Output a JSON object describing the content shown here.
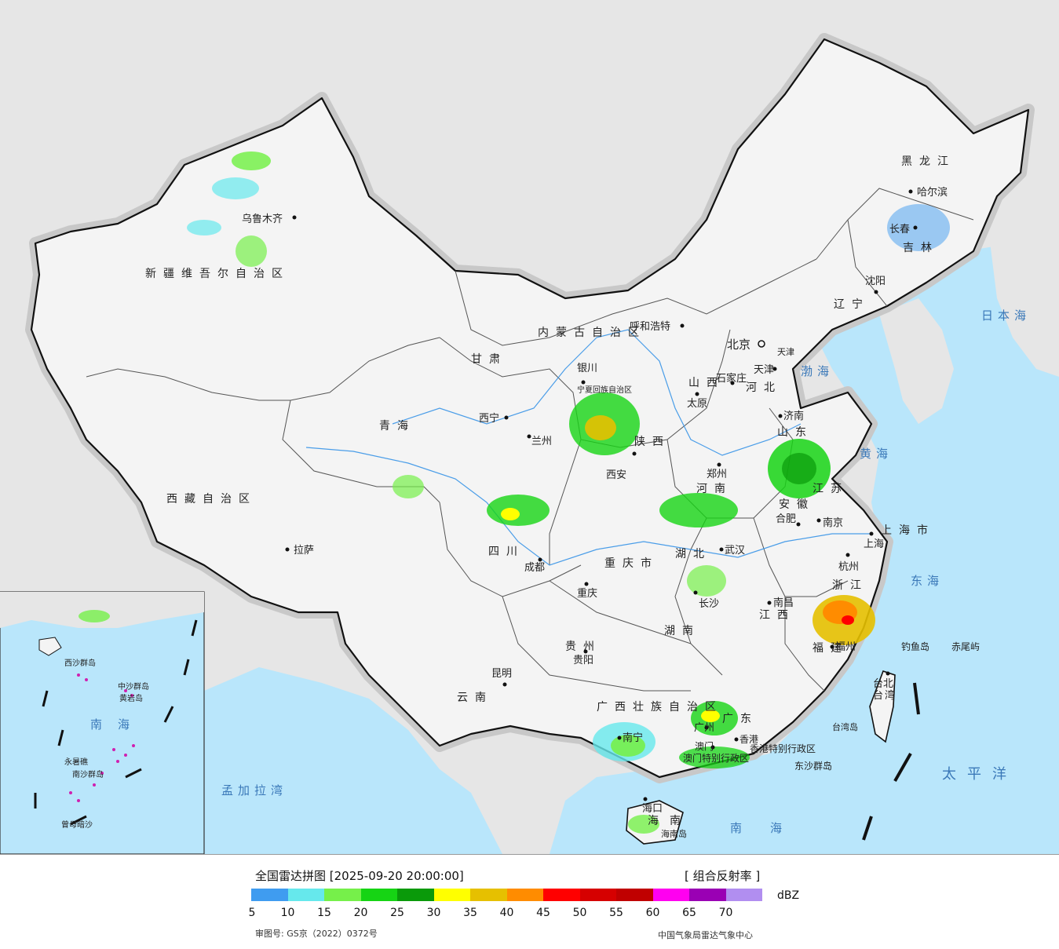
{
  "map": {
    "provinces": [
      {
        "id": "xinjiang",
        "label": "新疆维吾尔自治区"
      },
      {
        "id": "xizang",
        "label": "西藏自治区"
      },
      {
        "id": "qinghai",
        "label": "青海"
      },
      {
        "id": "gansu",
        "label": "甘肃"
      },
      {
        "id": "neimenggu",
        "label": "内蒙古自治区"
      },
      {
        "id": "heilongjiang",
        "label": "黑龙江"
      },
      {
        "id": "jilin",
        "label": "吉林"
      },
      {
        "id": "liaoning",
        "label": "辽宁"
      },
      {
        "id": "hebei",
        "label": "河北"
      },
      {
        "id": "shanxi",
        "label": "山西"
      },
      {
        "id": "shandong",
        "label": "山东"
      },
      {
        "id": "henan",
        "label": "河南"
      },
      {
        "id": "shaanxi",
        "label": "陕西"
      },
      {
        "id": "sichuan",
        "label": "四川"
      },
      {
        "id": "chongqing",
        "label": "重庆市"
      },
      {
        "id": "hubei",
        "label": "湖北"
      },
      {
        "id": "anhui",
        "label": "安徽"
      },
      {
        "id": "jiangsu",
        "label": "江苏"
      },
      {
        "id": "shanghai",
        "label": "上海市"
      },
      {
        "id": "zhejiang",
        "label": "浙江"
      },
      {
        "id": "jiangxi",
        "label": "江西"
      },
      {
        "id": "hunan",
        "label": "湖南"
      },
      {
        "id": "guizhou",
        "label": "贵州"
      },
      {
        "id": "yunnan",
        "label": "云南"
      },
      {
        "id": "guangxi",
        "label": "广西壮族自治区"
      },
      {
        "id": "guangdong",
        "label": "广东"
      },
      {
        "id": "fujian",
        "label": "福建"
      },
      {
        "id": "taiwan",
        "label": "台湾"
      },
      {
        "id": "hainan",
        "label": "海南"
      },
      {
        "id": "ningxia",
        "label": "宁夏回族自治区"
      },
      {
        "id": "xianggang",
        "label": "香港特别行政区"
      },
      {
        "id": "aomen",
        "label": "澳门特别行政区"
      },
      {
        "id": "tianjin",
        "label": "天津"
      }
    ],
    "cities": [
      {
        "id": "wulumuqi",
        "label": "乌鲁木齐"
      },
      {
        "id": "lasa",
        "label": "拉萨"
      },
      {
        "id": "xining",
        "label": "西宁"
      },
      {
        "id": "lanzhou",
        "label": "兰州"
      },
      {
        "id": "yinchuan",
        "label": "银川"
      },
      {
        "id": "huhehaote",
        "label": "呼和浩特"
      },
      {
        "id": "haerbin",
        "label": "哈尔滨"
      },
      {
        "id": "changchun",
        "label": "长春"
      },
      {
        "id": "shenyang",
        "label": "沈阳"
      },
      {
        "id": "beijing",
        "label": "北京"
      },
      {
        "id": "tianjin_city",
        "label": "天津"
      },
      {
        "id": "shijiazhuang",
        "label": "石家庄"
      },
      {
        "id": "taiyuan",
        "label": "太原"
      },
      {
        "id": "jinan",
        "label": "济南"
      },
      {
        "id": "zhengzhou",
        "label": "郑州"
      },
      {
        "id": "xian",
        "label": "西安"
      },
      {
        "id": "chengdu",
        "label": "成都"
      },
      {
        "id": "chongqing_city",
        "label": "重庆"
      },
      {
        "id": "wuhan",
        "label": "武汉"
      },
      {
        "id": "hefei",
        "label": "合肥"
      },
      {
        "id": "nanjing",
        "label": "南京"
      },
      {
        "id": "shanghai_city",
        "label": "上海"
      },
      {
        "id": "hangzhou",
        "label": "杭州"
      },
      {
        "id": "nanchang",
        "label": "南昌"
      },
      {
        "id": "changsha",
        "label": "长沙"
      },
      {
        "id": "guiyang",
        "label": "贵阳"
      },
      {
        "id": "kunming",
        "label": "昆明"
      },
      {
        "id": "nanning",
        "label": "南宁"
      },
      {
        "id": "guangzhou",
        "label": "广州"
      },
      {
        "id": "fuzhou",
        "label": "福州"
      },
      {
        "id": "taibei",
        "label": "台北"
      },
      {
        "id": "haikou",
        "label": "海口"
      },
      {
        "id": "xianggang_city",
        "label": "香港"
      },
      {
        "id": "aomen_city",
        "label": "澳门"
      }
    ],
    "seas": [
      {
        "id": "bohai",
        "label": "渤海"
      },
      {
        "id": "huanghai",
        "label": "黄海"
      },
      {
        "id": "donghai",
        "label": "东海"
      },
      {
        "id": "nanhai",
        "label": "南海"
      },
      {
        "id": "riben_hai",
        "label": "日本海"
      },
      {
        "id": "taipingyang",
        "label": "太平洋"
      },
      {
        "id": "mengjiala",
        "label": "孟加拉湾"
      }
    ],
    "islands": [
      {
        "id": "diaoyu",
        "label": "钓鱼岛"
      },
      {
        "id": "chiwei",
        "label": "赤尾屿"
      },
      {
        "id": "dongsha",
        "label": "东沙群岛"
      },
      {
        "id": "hainan_dao",
        "label": "海南岛"
      },
      {
        "id": "taiwan_dao",
        "label": "台湾岛"
      }
    ],
    "inset": {
      "nanhai_label": "南海",
      "xisha": "西沙群岛",
      "zhongsha": "中沙群岛",
      "huangyan": "黄岩岛",
      "nansha": "南沙群岛",
      "zengmu": "曾母暗沙",
      "yongshu": "永暑礁"
    }
  },
  "legend": {
    "title": "全国雷达拼图 [2025-09-20 20:00:00]",
    "product": "[ 组合反射率 ]",
    "unit": "dBZ",
    "ticks": [
      "5",
      "10",
      "15",
      "20",
      "25",
      "30",
      "35",
      "40",
      "45",
      "50",
      "55",
      "60",
      "65",
      "70"
    ],
    "colors": [
      "#3f9cf0",
      "#66e8ec",
      "#76f04a",
      "#16d414",
      "#0a9a0a",
      "#ffff00",
      "#e6c000",
      "#ff8c00",
      "#ff0000",
      "#d60000",
      "#c00000",
      "#ff00f0",
      "#9a00b4",
      "#b18ef0"
    ],
    "review_number": "审图号: GS京（2022）0372号",
    "agency": "中国气象局雷达气象中心"
  }
}
